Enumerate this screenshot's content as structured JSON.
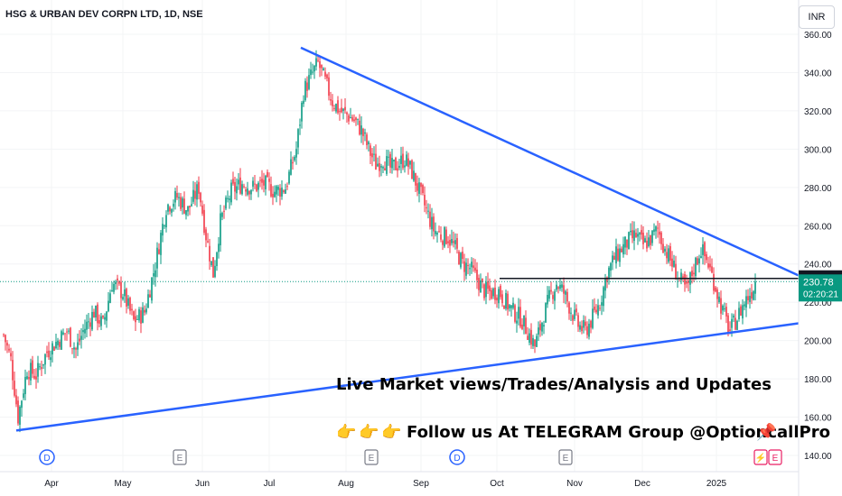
{
  "header": {
    "title": "HSG & URBAN DEV CORPN LTD, 1D, NSE",
    "currency": "INR"
  },
  "price_labels": {
    "resistance": "232.45",
    "last_price": "230.78",
    "countdown": "02:20:21"
  },
  "annotations": {
    "line1": "Live Market views/Trades/Analysis and Updates",
    "line2": "Follow us At TELEGRAM Group @OptioncallPro",
    "pointer_emoji": "👉",
    "pin_emoji": "📌"
  },
  "events": [
    {
      "type": "D",
      "month": "Apr",
      "color": "#2962ff"
    },
    {
      "type": "E",
      "month": "Jun",
      "color": "#787b86"
    },
    {
      "type": "E",
      "month": "Aug",
      "color": "#787b86"
    },
    {
      "type": "D",
      "month": "Sep",
      "color": "#2962ff"
    },
    {
      "type": "E",
      "month": "Nov",
      "color": "#787b86"
    },
    {
      "type": "E",
      "month": "Nov",
      "color": "#787b86"
    },
    {
      "type": "split",
      "month": "2025",
      "color": "#e91e63"
    },
    {
      "type": "E",
      "month": "2025",
      "color": "#e91e63"
    }
  ],
  "chart_data": {
    "type": "candlestick",
    "title": "HSG & URBAN DEV CORPN LTD, 1D, NSE",
    "ylim": [
      140,
      360
    ],
    "y_ticks": [
      "140.00",
      "160.00",
      "180.00",
      "200.00",
      "220.00",
      "240.00",
      "260.00",
      "280.00",
      "300.00",
      "320.00",
      "340.00",
      "360.00"
    ],
    "x_ticks": [
      "Apr",
      "May",
      "Jun",
      "Jul",
      "Aug",
      "Sep",
      "Oct",
      "Nov",
      "Dec",
      "2025"
    ],
    "colors": {
      "up": "#089981",
      "down": "#f23645",
      "trendline": "#2962ff",
      "resistance": "#131722"
    },
    "trendlines": [
      {
        "name": "upper",
        "from": {
          "x": "Jul",
          "y": 353
        },
        "to": {
          "x": "end",
          "y": 234
        }
      },
      {
        "name": "lower",
        "from": {
          "x": "Mar",
          "y": 153
        },
        "to": {
          "x": "end",
          "y": 209
        }
      }
    ],
    "horizontal_lines": [
      {
        "value": 232.45,
        "from": "Oct",
        "to": "end"
      }
    ],
    "last_price": 230.78,
    "price_path": [
      [
        0,
        203
      ],
      [
        4,
        190
      ],
      [
        8,
        160
      ],
      [
        13,
        185
      ],
      [
        18,
        182
      ],
      [
        24,
        194
      ],
      [
        30,
        200
      ],
      [
        35,
        205
      ],
      [
        40,
        195
      ],
      [
        44,
        205
      ],
      [
        50,
        215
      ],
      [
        55,
        208
      ],
      [
        60,
        230
      ],
      [
        66,
        225
      ],
      [
        72,
        210
      ],
      [
        78,
        215
      ],
      [
        84,
        240
      ],
      [
        90,
        270
      ],
      [
        96,
        275
      ],
      [
        102,
        268
      ],
      [
        108,
        280
      ],
      [
        112,
        255
      ],
      [
        116,
        235
      ],
      [
        120,
        262
      ],
      [
        126,
        278
      ],
      [
        132,
        282
      ],
      [
        138,
        280
      ],
      [
        144,
        282
      ],
      [
        150,
        278
      ],
      [
        156,
        280
      ],
      [
        162,
        300
      ],
      [
        166,
        330
      ],
      [
        170,
        338
      ],
      [
        174,
        345
      ],
      [
        178,
        335
      ],
      [
        182,
        325
      ],
      [
        186,
        320
      ],
      [
        190,
        318
      ],
      [
        194,
        315
      ],
      [
        198,
        310
      ],
      [
        202,
        300
      ],
      [
        206,
        292
      ],
      [
        210,
        295
      ],
      [
        214,
        290
      ],
      [
        218,
        292
      ],
      [
        222,
        295
      ],
      [
        226,
        288
      ],
      [
        230,
        278
      ],
      [
        234,
        268
      ],
      [
        238,
        258
      ],
      [
        242,
        255
      ],
      [
        246,
        254
      ],
      [
        250,
        248
      ],
      [
        254,
        240
      ],
      [
        258,
        238
      ],
      [
        262,
        232
      ],
      [
        266,
        226
      ],
      [
        270,
        225
      ],
      [
        274,
        226
      ],
      [
        278,
        220
      ],
      [
        282,
        215
      ],
      [
        286,
        212
      ],
      [
        290,
        205
      ],
      [
        294,
        197
      ],
      [
        298,
        210
      ],
      [
        302,
        222
      ],
      [
        306,
        230
      ],
      [
        310,
        225
      ],
      [
        314,
        216
      ],
      [
        318,
        208
      ],
      [
        322,
        205
      ],
      [
        326,
        212
      ],
      [
        330,
        220
      ],
      [
        334,
        235
      ],
      [
        338,
        243
      ],
      [
        342,
        248
      ],
      [
        346,
        252
      ],
      [
        350,
        255
      ],
      [
        354,
        250
      ],
      [
        358,
        253
      ],
      [
        362,
        258
      ],
      [
        366,
        248
      ],
      [
        370,
        240
      ],
      [
        374,
        232
      ],
      [
        378,
        226
      ],
      [
        382,
        238
      ],
      [
        386,
        248
      ],
      [
        390,
        240
      ],
      [
        394,
        228
      ],
      [
        398,
        215
      ],
      [
        402,
        205
      ],
      [
        406,
        212
      ],
      [
        410,
        220
      ],
      [
        414,
        226
      ],
      [
        416,
        230.78
      ]
    ]
  }
}
